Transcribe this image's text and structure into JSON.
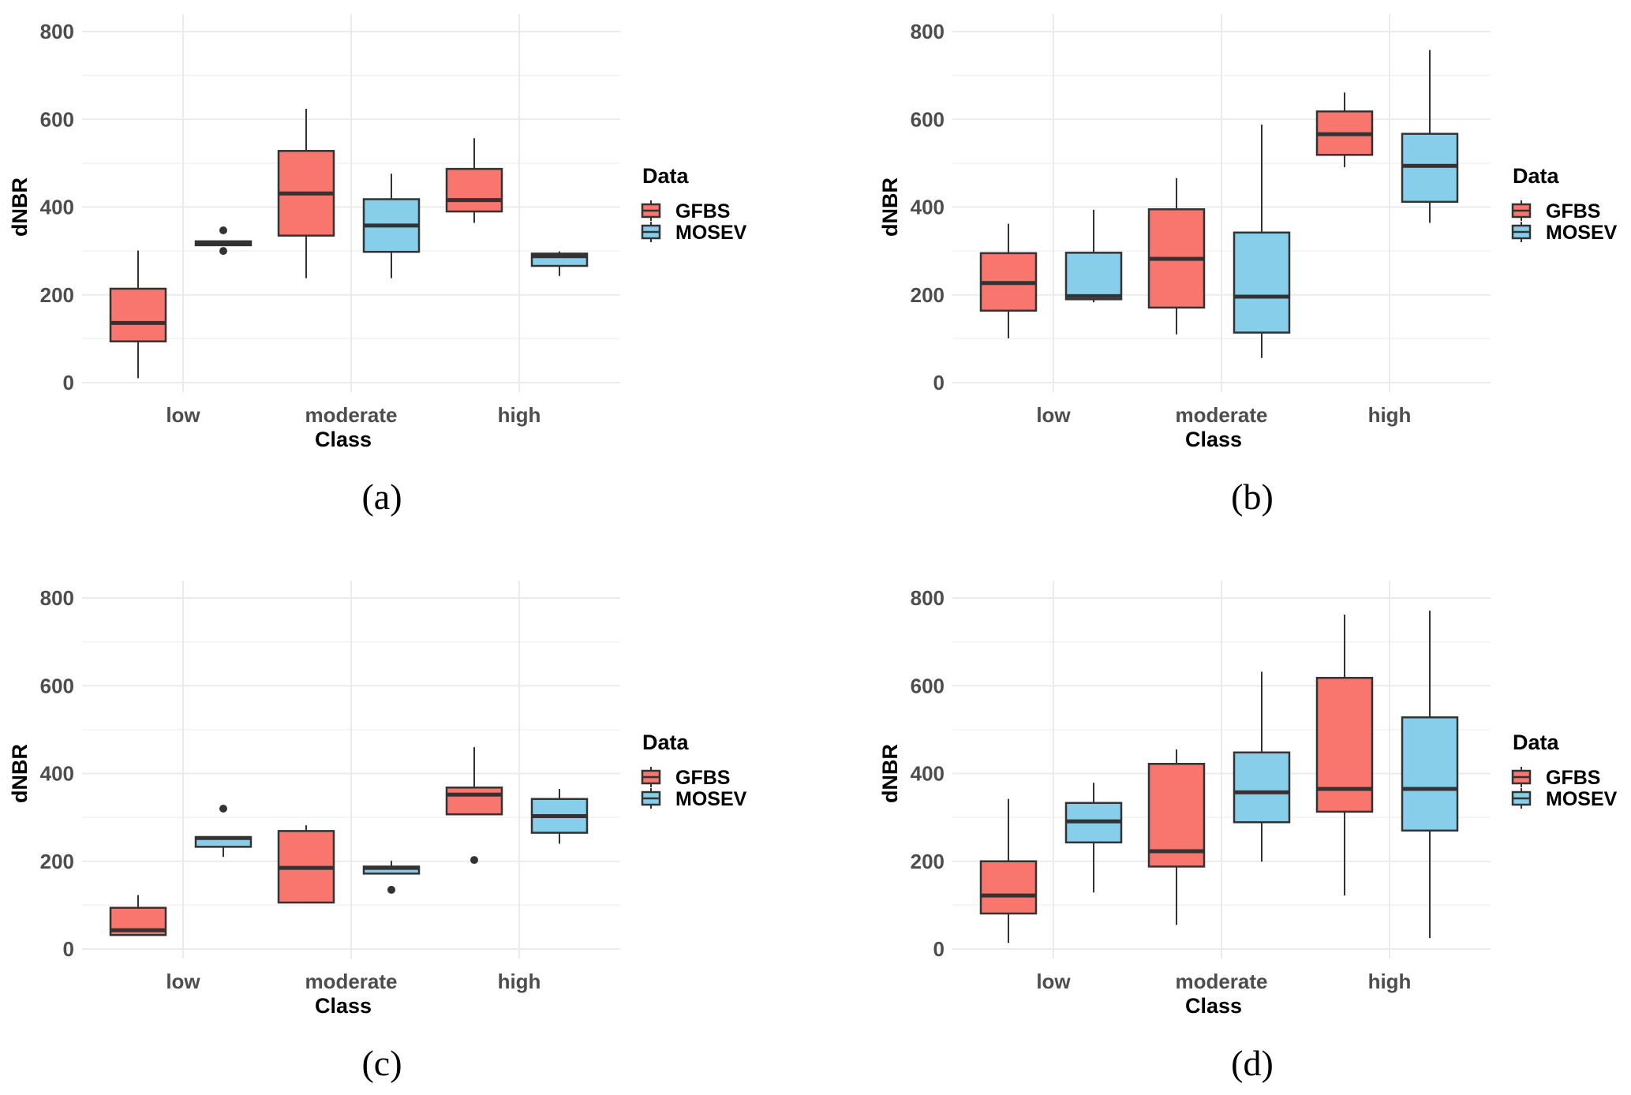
{
  "figure": {
    "legend_title": "Data",
    "colors": {
      "GFBS": "#f8766d",
      "MOSEV": "#87ceeb",
      "outline": "#333333"
    }
  },
  "chart_data": [
    {
      "type": "boxplot",
      "caption": "(a)",
      "xlabel": "Class",
      "ylabel": "dNBR",
      "categories": [
        "low",
        "moderate",
        "high"
      ],
      "yticks": [
        0,
        200,
        400,
        600,
        800
      ],
      "ylim": [
        0,
        800
      ],
      "grid": true,
      "legend": {
        "title": "Data",
        "position": "right",
        "entries": [
          "GFBS",
          "MOSEV"
        ]
      },
      "series": [
        {
          "name": "GFBS",
          "boxes": [
            {
              "min": 10,
              "q1": 94,
              "median": 136,
              "q3": 214,
              "max": 301,
              "outliers": []
            },
            {
              "min": 238,
              "q1": 335,
              "median": 431,
              "q3": 528,
              "max": 624,
              "outliers": []
            },
            {
              "min": 364,
              "q1": 390,
              "median": 416,
              "q3": 487,
              "max": 557,
              "outliers": []
            }
          ]
        },
        {
          "name": "MOSEV",
          "boxes": [
            {
              "min": 313,
              "q1": 313,
              "median": 318,
              "q3": 322,
              "max": 322,
              "outliers": [
                300,
                347
              ]
            },
            {
              "min": 238,
              "q1": 298,
              "median": 358,
              "q3": 418,
              "max": 476,
              "outliers": []
            },
            {
              "min": 243,
              "q1": 266,
              "median": 288,
              "q3": 294,
              "max": 299,
              "outliers": []
            }
          ]
        }
      ]
    },
    {
      "type": "boxplot",
      "caption": "(b)",
      "xlabel": "Class",
      "ylabel": "dNBR",
      "categories": [
        "low",
        "moderate",
        "high"
      ],
      "yticks": [
        0,
        200,
        400,
        600,
        800
      ],
      "ylim": [
        0,
        800
      ],
      "grid": true,
      "legend": {
        "title": "Data",
        "position": "right",
        "entries": [
          "GFBS",
          "MOSEV"
        ]
      },
      "series": [
        {
          "name": "GFBS",
          "boxes": [
            {
              "min": 101,
              "q1": 164,
              "median": 227,
              "q3": 295,
              "max": 362,
              "outliers": []
            },
            {
              "min": 110,
              "q1": 171,
              "median": 282,
              "q3": 395,
              "max": 466,
              "outliers": []
            },
            {
              "min": 491,
              "q1": 519,
              "median": 566,
              "q3": 618,
              "max": 661,
              "outliers": []
            }
          ]
        },
        {
          "name": "MOSEV",
          "boxes": [
            {
              "min": 183,
              "q1": 190,
              "median": 197,
              "q3": 296,
              "max": 394,
              "outliers": []
            },
            {
              "min": 56,
              "q1": 114,
              "median": 196,
              "q3": 342,
              "max": 588,
              "outliers": []
            },
            {
              "min": 364,
              "q1": 412,
              "median": 494,
              "q3": 567,
              "max": 758,
              "outliers": []
            }
          ]
        }
      ]
    },
    {
      "type": "boxplot",
      "caption": "(c)",
      "xlabel": "Class",
      "ylabel": "dNBR",
      "categories": [
        "low",
        "moderate",
        "high"
      ],
      "yticks": [
        0,
        200,
        400,
        600,
        800
      ],
      "ylim": [
        0,
        800
      ],
      "grid": true,
      "legend": {
        "title": "Data",
        "position": "right",
        "entries": [
          "GFBS",
          "MOSEV"
        ]
      },
      "series": [
        {
          "name": "GFBS",
          "boxes": [
            {
              "min": 31,
              "q1": 32,
              "median": 43,
              "q3": 94,
              "max": 123,
              "outliers": []
            },
            {
              "min": 106,
              "q1": 106,
              "median": 185,
              "q3": 269,
              "max": 282,
              "outliers": []
            },
            {
              "min": 307,
              "q1": 307,
              "median": 352,
              "q3": 368,
              "max": 460,
              "outliers": [
                203
              ]
            }
          ]
        },
        {
          "name": "MOSEV",
          "boxes": [
            {
              "min": 210,
              "q1": 233,
              "median": 253,
              "q3": 255,
              "max": 255,
              "outliers": [
                320
              ]
            },
            {
              "min": 172,
              "q1": 172,
              "median": 185,
              "q3": 188,
              "max": 201,
              "outliers": [
                135
              ]
            },
            {
              "min": 240,
              "q1": 265,
              "median": 303,
              "q3": 342,
              "max": 365,
              "outliers": []
            }
          ]
        }
      ]
    },
    {
      "type": "boxplot",
      "caption": "(d)",
      "xlabel": "Class",
      "ylabel": "dNBR",
      "categories": [
        "low",
        "moderate",
        "high"
      ],
      "yticks": [
        0,
        200,
        400,
        600,
        800
      ],
      "ylim": [
        0,
        800
      ],
      "grid": true,
      "legend": {
        "title": "Data",
        "position": "right",
        "entries": [
          "GFBS",
          "MOSEV"
        ]
      },
      "series": [
        {
          "name": "GFBS",
          "boxes": [
            {
              "min": 14,
              "q1": 81,
              "median": 122,
              "q3": 200,
              "max": 342,
              "outliers": []
            },
            {
              "min": 55,
              "q1": 188,
              "median": 223,
              "q3": 422,
              "max": 455,
              "outliers": []
            },
            {
              "min": 122,
              "q1": 313,
              "median": 365,
              "q3": 618,
              "max": 762,
              "outliers": []
            }
          ]
        },
        {
          "name": "MOSEV",
          "boxes": [
            {
              "min": 129,
              "q1": 243,
              "median": 291,
              "q3": 333,
              "max": 379,
              "outliers": []
            },
            {
              "min": 199,
              "q1": 289,
              "median": 357,
              "q3": 448,
              "max": 632,
              "outliers": []
            },
            {
              "min": 25,
              "q1": 270,
              "median": 365,
              "q3": 528,
              "max": 771,
              "outliers": []
            }
          ]
        }
      ]
    }
  ]
}
